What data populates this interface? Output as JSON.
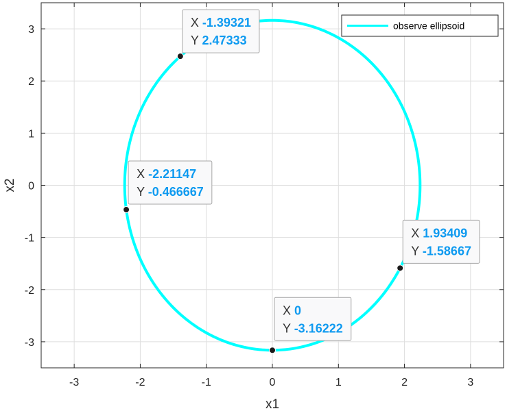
{
  "chart_data": {
    "type": "line",
    "title": "",
    "xlabel": "x1",
    "ylabel": "x2",
    "xlim": [
      -3.5,
      3.5
    ],
    "ylim": [
      -3.5,
      3.5
    ],
    "xticks": [
      -3,
      -2,
      -1,
      0,
      1,
      2,
      3
    ],
    "yticks": [
      -3,
      -2,
      -1,
      0,
      1,
      2,
      3
    ],
    "xtick_labels": [
      "-3",
      "-2",
      "-1",
      "0",
      "1",
      "2",
      "3"
    ],
    "ytick_labels": [
      "-3",
      "-2",
      "-1",
      "0",
      "1",
      "2",
      "3"
    ],
    "grid": true,
    "legend_position": "top-right",
    "series": [
      {
        "name": "observe ellipsoid",
        "color": "#00ffff",
        "shape": "ellipse",
        "center": [
          0,
          0
        ],
        "x_semi_axis": 2.236,
        "y_semi_axis": 3.162
      }
    ],
    "data_tips": [
      {
        "x_label": "X",
        "y_label": "Y",
        "x": "-1.39321",
        "y": "2.47333"
      },
      {
        "x_label": "X",
        "y_label": "Y",
        "x": "-2.21147",
        "y": "-0.466667"
      },
      {
        "x_label": "X",
        "y_label": "Y",
        "x": "1.93409",
        "y": "-1.58667"
      },
      {
        "x_label": "X",
        "y_label": "Y",
        "x": "0",
        "y": "-3.16222"
      }
    ]
  }
}
